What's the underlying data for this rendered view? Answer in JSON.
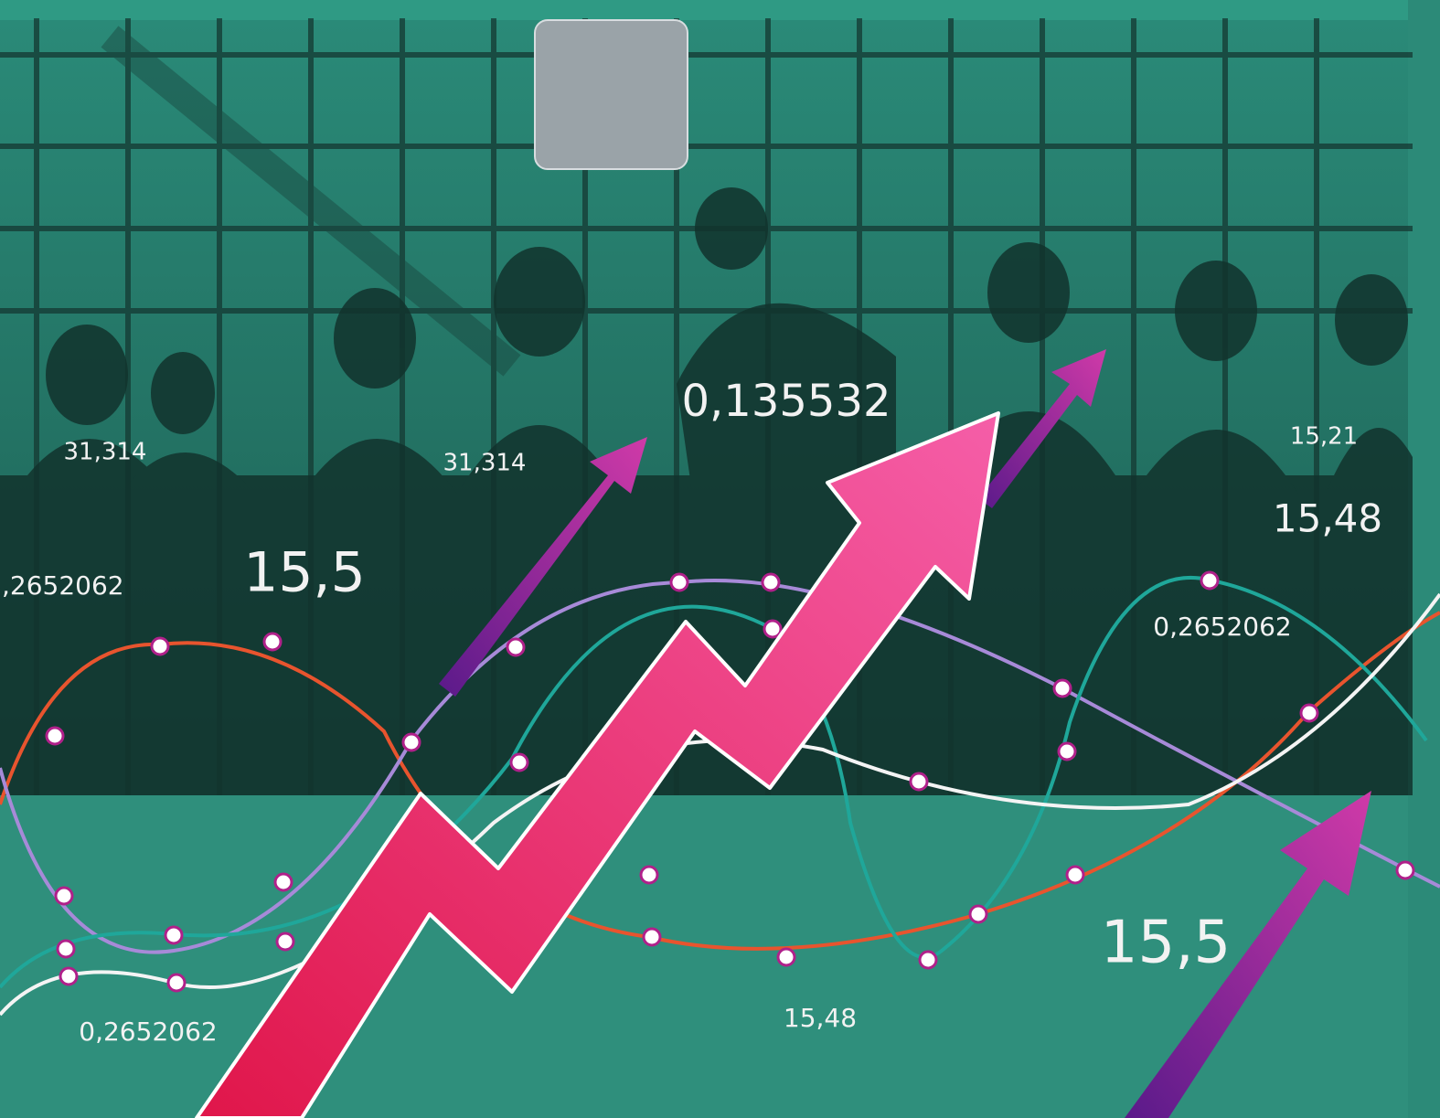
{
  "labels": [
    {
      "text": "31,314"
    },
    {
      "text": "31,314"
    },
    {
      "text": "0,135532"
    },
    {
      "text": "15,21"
    },
    {
      "text": "15,48"
    },
    {
      "text": ",2652062"
    },
    {
      "text": "15,5"
    },
    {
      "text": "0,2652062"
    },
    {
      "text": "0,2652062"
    },
    {
      "text": "15,48"
    },
    {
      "text": "15,5"
    }
  ]
}
